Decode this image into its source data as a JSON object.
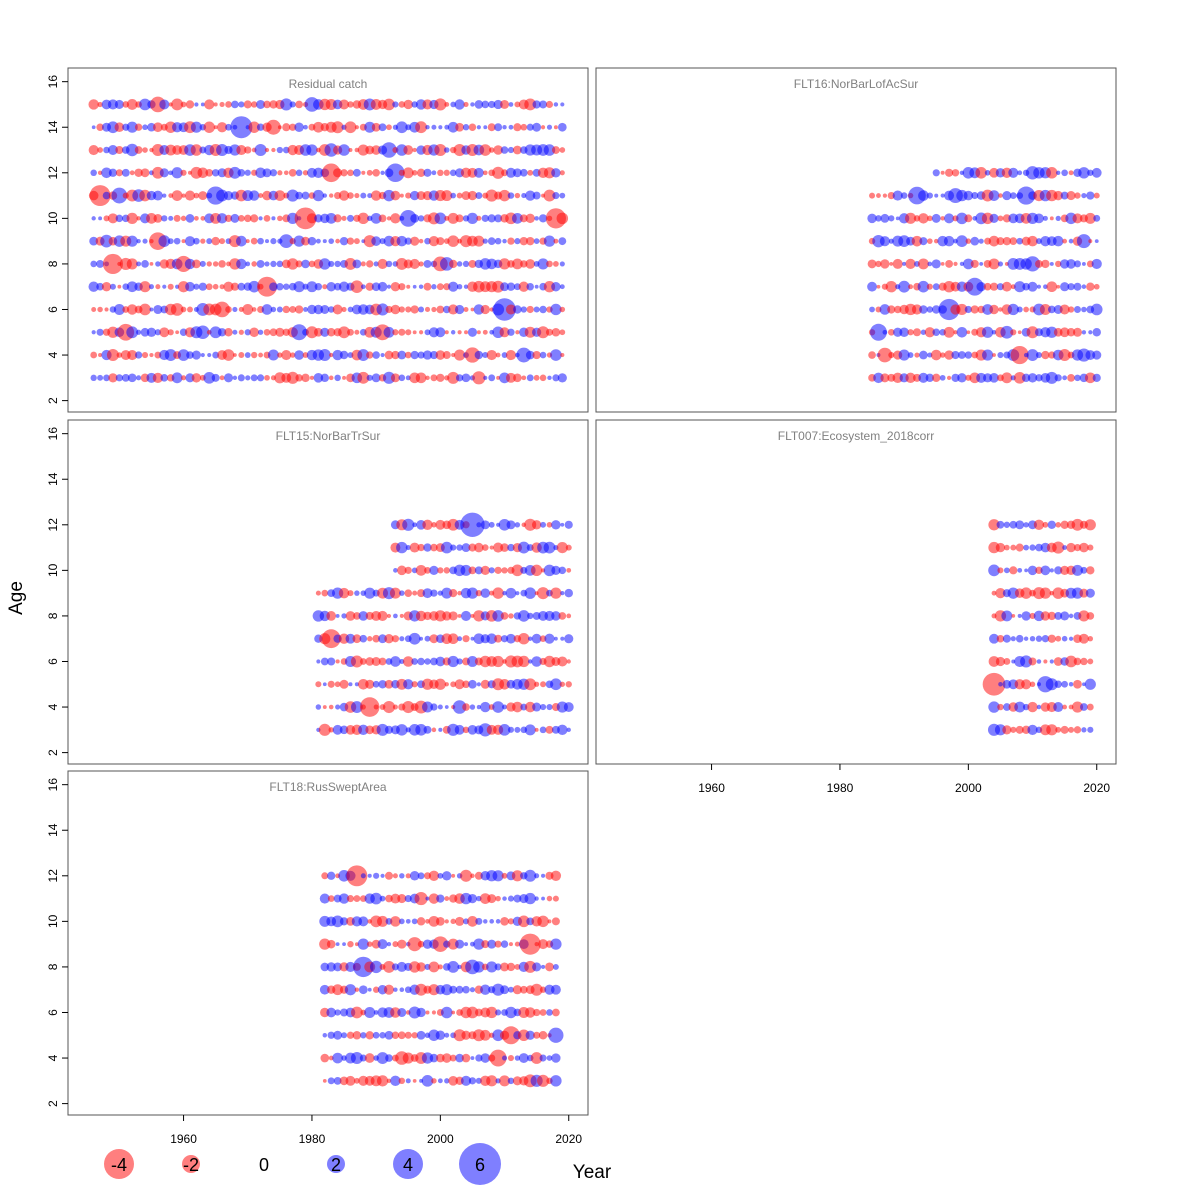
{
  "chart_data": {
    "type": "scatter",
    "subtype": "bubble",
    "xlabel": "Year",
    "ylabel": "Age",
    "xlim": [
      1942,
      2023
    ],
    "ylim": [
      1.5,
      16.6
    ],
    "x_ticks": [
      1960,
      1980,
      2000,
      2020
    ],
    "y_ticks": [
      2,
      4,
      6,
      8,
      10,
      12,
      14,
      16
    ],
    "colors": {
      "positive": "#0000FF",
      "negative": "#FF0000",
      "opacity": 0.5
    },
    "legend": {
      "placement": "bottom",
      "entries": [
        {
          "label": "-4",
          "value": -4
        },
        {
          "label": "-2",
          "value": -2
        },
        {
          "label": "0",
          "value": 0
        },
        {
          "label": "2",
          "value": 2
        },
        {
          "label": "4",
          "value": 4
        },
        {
          "label": "6",
          "value": 6
        }
      ]
    },
    "panels": [
      {
        "name": "Residual catch",
        "years": [
          1946,
          2019
        ],
        "ages": [
          3,
          15
        ]
      },
      {
        "name": "FLT16:NorBarLofAcSur",
        "years": [
          1985,
          2020
        ],
        "ages": [
          3,
          12
        ],
        "ragged": [
          [
            3,
            10,
            1985
          ],
          [
            11,
            11,
            1985
          ],
          [
            12,
            12,
            1995
          ]
        ]
      },
      {
        "name": "FLT15:NorBarTrSur",
        "years": [
          1981,
          2020
        ],
        "ages": [
          3,
          12
        ],
        "ragged": [
          [
            3,
            9,
            1981
          ],
          [
            10,
            12,
            1993
          ]
        ]
      },
      {
        "name": "FLT007:Ecosystem_2018corr",
        "years": [
          2004,
          2019
        ],
        "ages": [
          3,
          12
        ]
      },
      {
        "name": "FLT18:RusSweptArea",
        "years": [
          1982,
          2018
        ],
        "ages": [
          3,
          12
        ]
      }
    ]
  }
}
